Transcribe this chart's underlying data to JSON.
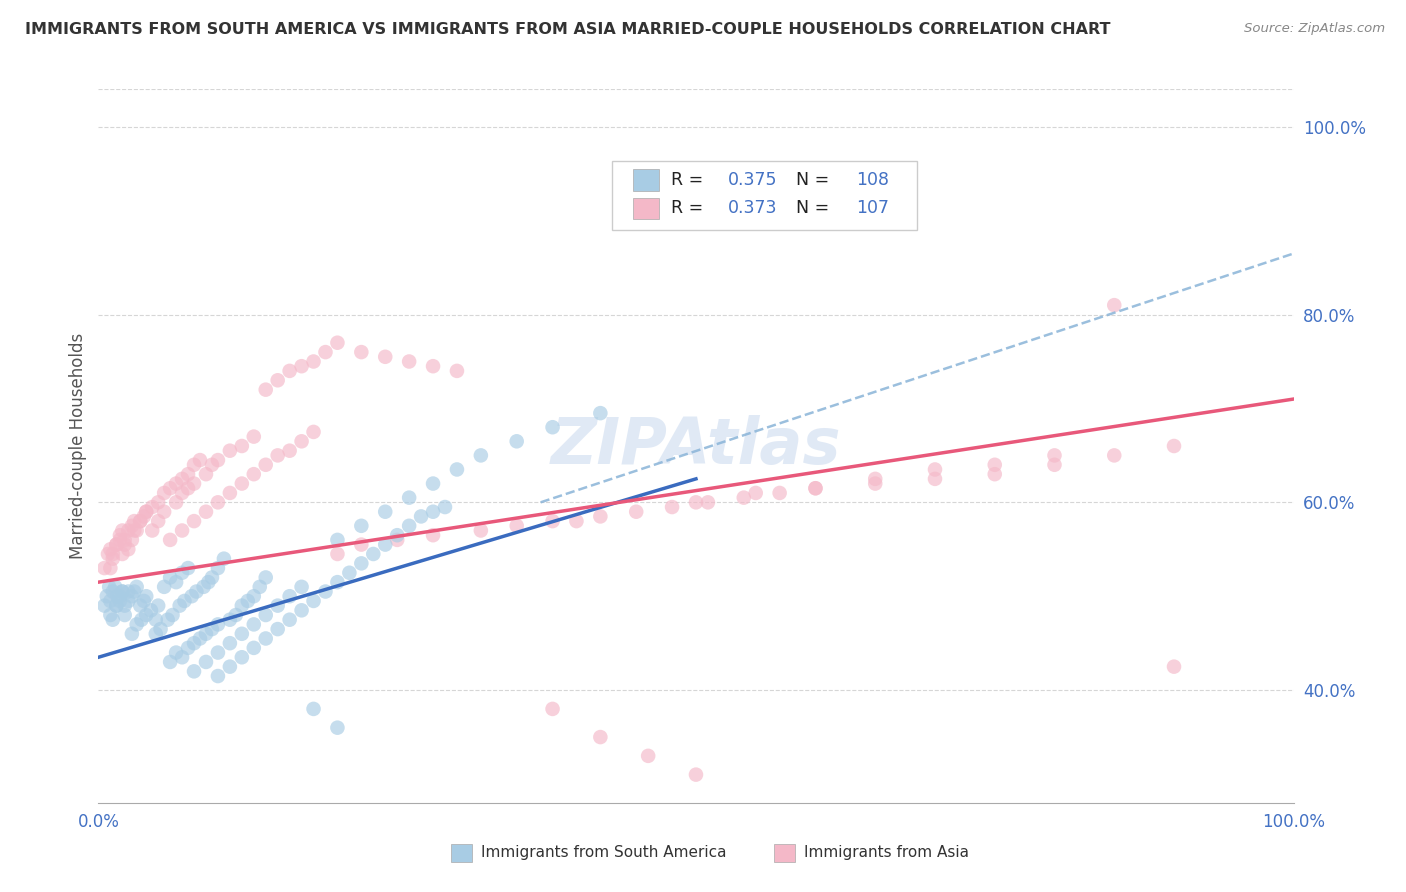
{
  "title": "IMMIGRANTS FROM SOUTH AMERICA VS IMMIGRANTS FROM ASIA MARRIED-COUPLE HOUSEHOLDS CORRELATION CHART",
  "source": "Source: ZipAtlas.com",
  "ylabel": "Married-couple Households",
  "xlim": [
    0.0,
    1.0
  ],
  "ylim": [
    0.28,
    1.04
  ],
  "xtick_labels": [
    "0.0%",
    "100.0%"
  ],
  "ytick_labels": [
    "40.0%",
    "60.0%",
    "80.0%",
    "100.0%"
  ],
  "ytick_positions": [
    0.4,
    0.6,
    0.8,
    1.0
  ],
  "r_blue": 0.375,
  "n_blue": 108,
  "r_pink": 0.373,
  "n_pink": 107,
  "blue_color": "#a8cce4",
  "pink_color": "#f4b8c8",
  "blue_line_color": "#3a6bbf",
  "pink_line_color": "#e8587a",
  "dashed_line_color": "#8ab4d8",
  "watermark": "ZIPAtlas",
  "background_color": "#ffffff",
  "grid_color": "#cccccc",
  "legend_label_blue": "Immigrants from South America",
  "legend_label_pink": "Immigrants from Asia",
  "title_color": "#333333",
  "axis_label_color": "#4472c4",
  "blue_line": {
    "x0": 0.0,
    "y0": 0.435,
    "x1": 0.5,
    "y1": 0.625
  },
  "pink_line": {
    "x0": 0.0,
    "y0": 0.515,
    "x1": 1.0,
    "y1": 0.71
  },
  "dashed_line": {
    "x0": 0.37,
    "y0": 0.6,
    "x1": 1.0,
    "y1": 0.865
  },
  "blue_scatter_x": [
    0.005,
    0.007,
    0.009,
    0.01,
    0.012,
    0.014,
    0.015,
    0.016,
    0.018,
    0.02,
    0.022,
    0.025,
    0.01,
    0.012,
    0.015,
    0.018,
    0.02,
    0.022,
    0.025,
    0.028,
    0.03,
    0.032,
    0.035,
    0.038,
    0.04,
    0.028,
    0.032,
    0.036,
    0.04,
    0.044,
    0.048,
    0.05,
    0.055,
    0.06,
    0.065,
    0.07,
    0.075,
    0.048,
    0.052,
    0.058,
    0.062,
    0.068,
    0.072,
    0.078,
    0.082,
    0.088,
    0.092,
    0.095,
    0.1,
    0.105,
    0.06,
    0.065,
    0.07,
    0.075,
    0.08,
    0.085,
    0.09,
    0.095,
    0.1,
    0.11,
    0.115,
    0.12,
    0.125,
    0.13,
    0.135,
    0.14,
    0.08,
    0.09,
    0.1,
    0.11,
    0.12,
    0.13,
    0.14,
    0.15,
    0.16,
    0.17,
    0.1,
    0.11,
    0.12,
    0.13,
    0.14,
    0.15,
    0.16,
    0.17,
    0.18,
    0.19,
    0.2,
    0.21,
    0.22,
    0.23,
    0.24,
    0.25,
    0.26,
    0.27,
    0.28,
    0.29,
    0.2,
    0.22,
    0.24,
    0.26,
    0.28,
    0.3,
    0.32,
    0.35,
    0.38,
    0.42,
    0.18,
    0.2
  ],
  "blue_scatter_y": [
    0.49,
    0.5,
    0.51,
    0.495,
    0.505,
    0.51,
    0.49,
    0.5,
    0.495,
    0.505,
    0.49,
    0.505,
    0.48,
    0.475,
    0.49,
    0.5,
    0.505,
    0.48,
    0.495,
    0.5,
    0.505,
    0.51,
    0.49,
    0.495,
    0.5,
    0.46,
    0.47,
    0.475,
    0.48,
    0.485,
    0.475,
    0.49,
    0.51,
    0.52,
    0.515,
    0.525,
    0.53,
    0.46,
    0.465,
    0.475,
    0.48,
    0.49,
    0.495,
    0.5,
    0.505,
    0.51,
    0.515,
    0.52,
    0.53,
    0.54,
    0.43,
    0.44,
    0.435,
    0.445,
    0.45,
    0.455,
    0.46,
    0.465,
    0.47,
    0.475,
    0.48,
    0.49,
    0.495,
    0.5,
    0.51,
    0.52,
    0.42,
    0.43,
    0.44,
    0.45,
    0.46,
    0.47,
    0.48,
    0.49,
    0.5,
    0.51,
    0.415,
    0.425,
    0.435,
    0.445,
    0.455,
    0.465,
    0.475,
    0.485,
    0.495,
    0.505,
    0.515,
    0.525,
    0.535,
    0.545,
    0.555,
    0.565,
    0.575,
    0.585,
    0.59,
    0.595,
    0.56,
    0.575,
    0.59,
    0.605,
    0.62,
    0.635,
    0.65,
    0.665,
    0.68,
    0.695,
    0.38,
    0.36
  ],
  "pink_scatter_x": [
    0.005,
    0.008,
    0.01,
    0.012,
    0.015,
    0.018,
    0.02,
    0.022,
    0.025,
    0.028,
    0.01,
    0.012,
    0.015,
    0.018,
    0.02,
    0.022,
    0.025,
    0.028,
    0.03,
    0.032,
    0.035,
    0.038,
    0.04,
    0.03,
    0.035,
    0.04,
    0.045,
    0.05,
    0.055,
    0.06,
    0.065,
    0.07,
    0.075,
    0.08,
    0.085,
    0.045,
    0.05,
    0.055,
    0.065,
    0.07,
    0.075,
    0.08,
    0.09,
    0.095,
    0.1,
    0.11,
    0.12,
    0.13,
    0.06,
    0.07,
    0.08,
    0.09,
    0.1,
    0.11,
    0.12,
    0.13,
    0.14,
    0.15,
    0.16,
    0.17,
    0.18,
    0.14,
    0.15,
    0.16,
    0.17,
    0.18,
    0.19,
    0.2,
    0.22,
    0.24,
    0.26,
    0.28,
    0.3,
    0.2,
    0.22,
    0.25,
    0.28,
    0.32,
    0.35,
    0.38,
    0.4,
    0.42,
    0.45,
    0.48,
    0.51,
    0.54,
    0.57,
    0.6,
    0.65,
    0.7,
    0.75,
    0.8,
    0.85,
    0.9,
    0.5,
    0.55,
    0.6,
    0.65,
    0.7,
    0.75,
    0.8,
    0.85,
    0.9,
    0.38,
    0.42,
    0.46,
    0.5
  ],
  "pink_scatter_y": [
    0.53,
    0.545,
    0.55,
    0.54,
    0.555,
    0.56,
    0.545,
    0.555,
    0.55,
    0.56,
    0.53,
    0.545,
    0.555,
    0.565,
    0.57,
    0.56,
    0.57,
    0.575,
    0.58,
    0.57,
    0.58,
    0.585,
    0.59,
    0.57,
    0.58,
    0.59,
    0.595,
    0.6,
    0.61,
    0.615,
    0.62,
    0.625,
    0.63,
    0.64,
    0.645,
    0.57,
    0.58,
    0.59,
    0.6,
    0.61,
    0.615,
    0.62,
    0.63,
    0.64,
    0.645,
    0.655,
    0.66,
    0.67,
    0.56,
    0.57,
    0.58,
    0.59,
    0.6,
    0.61,
    0.62,
    0.63,
    0.64,
    0.65,
    0.655,
    0.665,
    0.675,
    0.72,
    0.73,
    0.74,
    0.745,
    0.75,
    0.76,
    0.77,
    0.76,
    0.755,
    0.75,
    0.745,
    0.74,
    0.545,
    0.555,
    0.56,
    0.565,
    0.57,
    0.575,
    0.58,
    0.58,
    0.585,
    0.59,
    0.595,
    0.6,
    0.605,
    0.61,
    0.615,
    0.62,
    0.625,
    0.63,
    0.64,
    0.65,
    0.66,
    0.6,
    0.61,
    0.615,
    0.625,
    0.635,
    0.64,
    0.65,
    0.81,
    0.425,
    0.38,
    0.35,
    0.33,
    0.31
  ]
}
